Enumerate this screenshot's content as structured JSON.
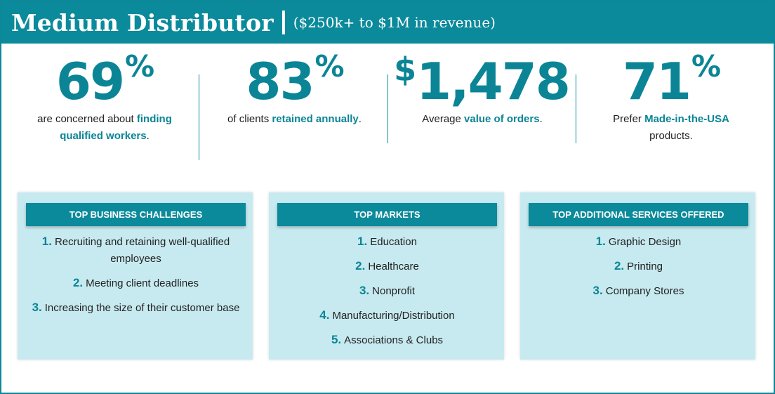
{
  "banner": {
    "title": "Medium Distributor",
    "subtitle": "($250k+ to $1M in revenue)"
  },
  "stats": [
    {
      "prefix": "",
      "value": "69",
      "suffix": "%",
      "text_before": "are concerned about ",
      "highlight": "finding qualified workers",
      "text_after": "."
    },
    {
      "prefix": "",
      "value": "83",
      "suffix": "%",
      "text_before": "of clients ",
      "highlight": "retained annually",
      "text_after": "."
    },
    {
      "prefix": "$",
      "value": "1,478",
      "suffix": "",
      "text_before": "Average ",
      "highlight": "value of orders",
      "text_after": "."
    },
    {
      "prefix": "",
      "value": "71",
      "suffix": "%",
      "text_before": "Prefer ",
      "highlight": "Made-in-the-USA",
      "text_after": " products."
    }
  ],
  "cards": [
    {
      "title": "TOP BUSINESS CHALLENGES",
      "items": [
        {
          "num": "1.",
          "text": "Recruiting and retaining well-qualified employees"
        },
        {
          "num": "2.",
          "text": "Meeting client deadlines"
        },
        {
          "num": "3.",
          "text": "Increasing the size of their customer base"
        }
      ]
    },
    {
      "title": "TOP MARKETS",
      "items": [
        {
          "num": "1.",
          "text": "Education"
        },
        {
          "num": "2.",
          "text": "Healthcare"
        },
        {
          "num": "3.",
          "text": "Nonprofit"
        },
        {
          "num": "4.",
          "text": "Manufacturing/Distribution"
        },
        {
          "num": "5.",
          "text": "Associations & Clubs"
        }
      ]
    },
    {
      "title": "TOP ADDITIONAL SERVICES OFFERED",
      "items": [
        {
          "num": "1.",
          "text": "Graphic Design"
        },
        {
          "num": "2.",
          "text": "Printing"
        },
        {
          "num": "3.",
          "text": "Company Stores"
        }
      ]
    }
  ],
  "colors": {
    "accent": "#0b8a9b",
    "card_bg": "#c7eaf0"
  }
}
